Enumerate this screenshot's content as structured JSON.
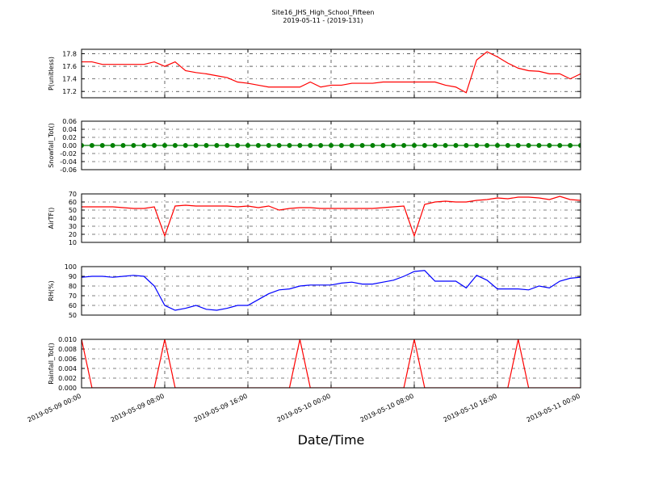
{
  "chart_data": {
    "type": "line",
    "title": "Site16_JHS_High_School_Fifteen",
    "subtitle": "2019-05-11 - (2019-131)",
    "xlabel": "Date/Time",
    "x": [
      "2019-05-09 00:00",
      "2019-05-09 01:00",
      "2019-05-09 02:00",
      "2019-05-09 03:00",
      "2019-05-09 04:00",
      "2019-05-09 05:00",
      "2019-05-09 06:00",
      "2019-05-09 07:00",
      "2019-05-09 08:00",
      "2019-05-09 09:00",
      "2019-05-09 10:00",
      "2019-05-09 11:00",
      "2019-05-09 12:00",
      "2019-05-09 13:00",
      "2019-05-09 14:00",
      "2019-05-09 15:00",
      "2019-05-09 16:00",
      "2019-05-09 17:00",
      "2019-05-09 18:00",
      "2019-05-09 19:00",
      "2019-05-09 20:00",
      "2019-05-09 21:00",
      "2019-05-09 22:00",
      "2019-05-09 23:00",
      "2019-05-10 00:00",
      "2019-05-10 01:00",
      "2019-05-10 02:00",
      "2019-05-10 03:00",
      "2019-05-10 04:00",
      "2019-05-10 05:00",
      "2019-05-10 06:00",
      "2019-05-10 07:00",
      "2019-05-10 08:00",
      "2019-05-10 09:00",
      "2019-05-10 10:00",
      "2019-05-10 11:00",
      "2019-05-10 12:00",
      "2019-05-10 13:00",
      "2019-05-10 14:00",
      "2019-05-10 15:00",
      "2019-05-10 16:00",
      "2019-05-10 17:00",
      "2019-05-10 18:00",
      "2019-05-10 19:00",
      "2019-05-10 20:00",
      "2019-05-10 21:00",
      "2019-05-10 22:00",
      "2019-05-10 23:00",
      "2019-05-11 00:00"
    ],
    "xlim": [
      "2019-05-09 00:00",
      "2019-05-11 00:00"
    ],
    "xticks": [
      "2019-05-09 00:00",
      "2019-05-09 08:00",
      "2019-05-09 16:00",
      "2019-05-10 00:00",
      "2019-05-10 08:00",
      "2019-05-10 16:00",
      "2019-05-11 00:00"
    ],
    "grid": true,
    "panels": [
      {
        "ylabel": "P(unitless)",
        "ylim": [
          17.1,
          17.87
        ],
        "yticks": [
          17.2,
          17.4,
          17.6,
          17.8
        ],
        "series": [
          {
            "color": "#ff0000",
            "markers": false,
            "values": [
              17.67,
              17.67,
              17.63,
              17.63,
              17.63,
              17.63,
              17.63,
              17.67,
              17.6,
              17.67,
              17.53,
              17.5,
              17.48,
              17.45,
              17.42,
              17.35,
              17.33,
              17.3,
              17.27,
              17.27,
              17.27,
              17.27,
              17.35,
              17.27,
              17.3,
              17.3,
              17.33,
              17.33,
              17.33,
              17.35,
              17.35,
              17.35,
              17.35,
              17.35,
              17.35,
              17.3,
              17.27,
              17.18,
              17.7,
              17.83,
              17.75,
              17.65,
              17.57,
              17.53,
              17.52,
              17.48,
              17.48,
              17.4,
              17.48
            ]
          }
        ]
      },
      {
        "ylabel": "Snowfall_Tot()",
        "ylim": [
          -0.06,
          0.06
        ],
        "yticks": [
          -0.06,
          -0.04,
          -0.02,
          {
            "value": 0,
            "label": "0.00"
          },
          0.02,
          0.04,
          0.06
        ],
        "series": [
          {
            "color": "#008000",
            "markers": true,
            "values": [
              0,
              0,
              0,
              0,
              0,
              0,
              0,
              0,
              0,
              0,
              0,
              0,
              0,
              0,
              0,
              0,
              0,
              0,
              0,
              0,
              0,
              0,
              0,
              0,
              0,
              0,
              0,
              0,
              0,
              0,
              0,
              0,
              0,
              0,
              0,
              0,
              0,
              0,
              0,
              0,
              0,
              0,
              0,
              0,
              0,
              0,
              0,
              0,
              0
            ]
          }
        ]
      },
      {
        "ylabel": "AirTF()",
        "ylim": [
          10,
          70
        ],
        "yticks": [
          10,
          20,
          30,
          40,
          50,
          60,
          70
        ],
        "series": [
          {
            "color": "#ff0000",
            "markers": false,
            "values": [
              54,
              54,
              54,
              54,
              53,
              52,
              52,
              54,
              18,
              55,
              56,
              55,
              55,
              55,
              55,
              54,
              55,
              53,
              55,
              50,
              52,
              53,
              53,
              52,
              52,
              52,
              52,
              52,
              52,
              53,
              54,
              55,
              18,
              57,
              60,
              61,
              60,
              60,
              62,
              63,
              65,
              64,
              66,
              66,
              65,
              63,
              67,
              63,
              62
            ]
          }
        ]
      },
      {
        "ylabel": "RH(%)",
        "ylim": [
          50,
          100
        ],
        "yticks": [
          50,
          60,
          70,
          80,
          90,
          100
        ],
        "series": [
          {
            "color": "#0000ff",
            "markers": false,
            "values": [
              89,
              90,
              90,
              89,
              90,
              91,
              90,
              80,
              60,
              55,
              57,
              60,
              56,
              55,
              57,
              60,
              60,
              66,
              72,
              76,
              77,
              80,
              81,
              81,
              81,
              83,
              84,
              82,
              82,
              84,
              86,
              90,
              95,
              96,
              85,
              85,
              85,
              78,
              91,
              86,
              77,
              77,
              77,
              76,
              80,
              78,
              85,
              88,
              89
            ]
          }
        ]
      },
      {
        "ylabel": "Rainfall_Tot()",
        "ylim": [
          0,
          0.01
        ],
        "yticks": [
          {
            "value": 0,
            "label": "0.000"
          },
          0.002,
          0.004,
          0.006,
          0.008,
          {
            "value": 0.01,
            "label": "0.010"
          }
        ],
        "series": [
          {
            "color": "#ff0000",
            "markers": false,
            "values": [
              0.01,
              0,
              0,
              0,
              0,
              0,
              0,
              0,
              0.01,
              0,
              0,
              0,
              0,
              0,
              0,
              0,
              0,
              0,
              0,
              0,
              0,
              0.01,
              0,
              0,
              0,
              0,
              0,
              0,
              0,
              0,
              0,
              0,
              0.01,
              0,
              0,
              0,
              0,
              0,
              0,
              0,
              0,
              0,
              0.01,
              0,
              0,
              0,
              0,
              0,
              0
            ]
          }
        ]
      }
    ]
  }
}
